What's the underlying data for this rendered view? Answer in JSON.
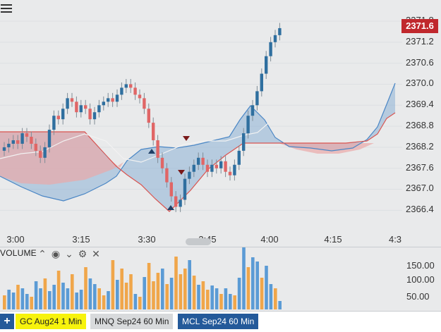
{
  "header": {
    "menu_icon": "hamburger-menu-icon"
  },
  "price_axis": {
    "labels": [
      "2371.8",
      "2371.2",
      "2370.6",
      "2370.0",
      "2369.4",
      "2368.8",
      "2368.2",
      "2367.6",
      "2367.0",
      "2366.4"
    ],
    "last_price": "2371.6",
    "last_price_color": "#c0282d"
  },
  "time_axis": {
    "labels": [
      "3:00",
      "3:15",
      "3:30",
      "3:45",
      "4:00",
      "4:15",
      "4:3"
    ]
  },
  "volume": {
    "title": "VOLUME",
    "tools": [
      "collapse-icon",
      "eye-icon",
      "chevron-down-icon",
      "settings-icon",
      "close-icon"
    ],
    "axis_labels": [
      "150.00",
      "100.00",
      "50.00"
    ]
  },
  "tabs": {
    "add_icon": "plus-icon",
    "items": [
      {
        "label": "GC Aug24 1 Min",
        "bg": "#f7f30c",
        "fg": "#222222"
      },
      {
        "label": "MNQ Sep24 60 Min",
        "bg": "#d8dadc",
        "fg": "#222222"
      },
      {
        "label": "MCL Sep24 60 Min",
        "bg": "#245a9a",
        "fg": "#ffffff"
      }
    ]
  },
  "colors": {
    "up": "#2f6f9f",
    "down": "#e06666",
    "cloud_bull": "#8db1d6",
    "cloud_bear": "#eaa8a8",
    "vol_a": "#f0a64a",
    "vol_b": "#5b9bd5"
  },
  "chart_data": {
    "type": "candlestick",
    "symbol": "GC Aug24",
    "interval": "1 Min",
    "y_axis_ticks": [
      2371.8,
      2371.2,
      2370.6,
      2370.0,
      2369.4,
      2368.8,
      2368.2,
      2367.6,
      2367.0,
      2366.4
    ],
    "x_axis_ticks": [
      "3:00",
      "3:15",
      "3:30",
      "3:45",
      "4:00",
      "4:15",
      "4:3"
    ],
    "ylim": [
      2365.8,
      2372.0
    ],
    "last_price": 2371.6,
    "closes": [
      2368.2,
      2368.3,
      2368.4,
      2368.3,
      2368.6,
      2368.5,
      2368.3,
      2368.1,
      2367.9,
      2368.2,
      2368.7,
      2369.1,
      2369.0,
      2369.3,
      2369.6,
      2369.5,
      2369.2,
      2369.4,
      2369.3,
      2369.0,
      2369.2,
      2369.4,
      2369.5,
      2369.6,
      2369.5,
      2369.7,
      2369.9,
      2370.0,
      2369.9,
      2369.7,
      2369.6,
      2369.3,
      2368.9,
      2368.4,
      2367.9,
      2367.6,
      2367.2,
      2366.8,
      2366.5,
      2366.7,
      2367.3,
      2367.5,
      2367.7,
      2367.9,
      2367.7,
      2367.5,
      2367.7,
      2367.6,
      2367.8,
      2367.5,
      2367.4,
      2367.7,
      2368.1,
      2368.6,
      2369.1,
      2369.4,
      2369.8,
      2370.3,
      2370.8,
      2371.2,
      2371.4,
      2371.6
    ],
    "volume_axis_ticks": [
      150.0,
      100.0,
      50.0
    ]
  }
}
